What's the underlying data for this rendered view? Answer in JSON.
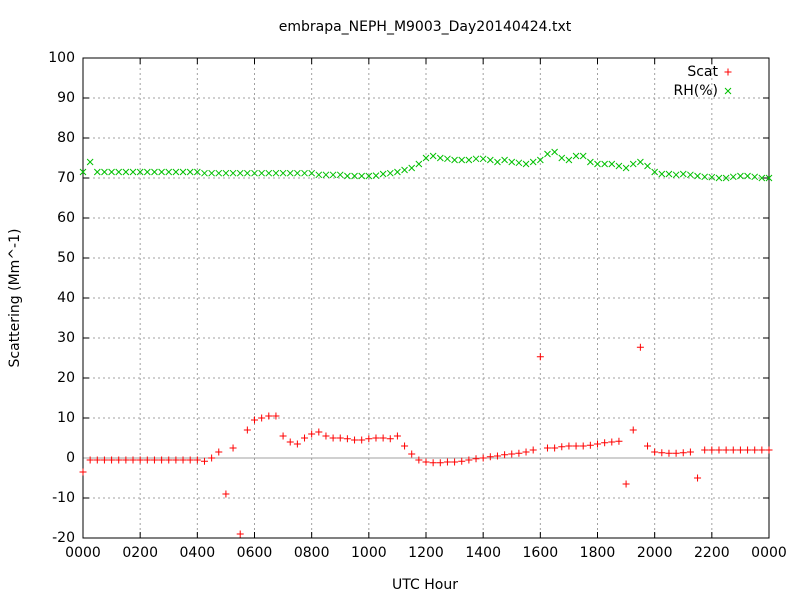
{
  "chart_data": {
    "type": "scatter",
    "title": "embrapa_NEPH_M9003_Day20140424.txt",
    "xlabel": "UTC Hour",
    "ylabel": "Scattering (Mm^-1)",
    "xlim": [
      0,
      24
    ],
    "xticks": [
      {
        "value": 0,
        "label": "0000"
      },
      {
        "value": 2,
        "label": "0200"
      },
      {
        "value": 4,
        "label": "0400"
      },
      {
        "value": 6,
        "label": "0600"
      },
      {
        "value": 8,
        "label": "0800"
      },
      {
        "value": 10,
        "label": "1000"
      },
      {
        "value": 12,
        "label": "1200"
      },
      {
        "value": 14,
        "label": "1400"
      },
      {
        "value": 16,
        "label": "1600"
      },
      {
        "value": 18,
        "label": "1800"
      },
      {
        "value": 20,
        "label": "2000"
      },
      {
        "value": 22,
        "label": "2200"
      },
      {
        "value": 24,
        "label": "0000"
      }
    ],
    "ylim": [
      -20,
      100
    ],
    "yticks": [
      -20,
      -10,
      0,
      10,
      20,
      30,
      40,
      50,
      60,
      70,
      80,
      90,
      100
    ],
    "grid": true,
    "zero_line": true,
    "legend": "top-right",
    "x": [
      0,
      0.25,
      0.5,
      0.75,
      1,
      1.25,
      1.5,
      1.75,
      2,
      2.25,
      2.5,
      2.75,
      3,
      3.25,
      3.5,
      3.75,
      4,
      4.25,
      4.5,
      4.75,
      5,
      5.25,
      5.5,
      5.75,
      6,
      6.25,
      6.5,
      6.75,
      7,
      7.25,
      7.5,
      7.75,
      8,
      8.25,
      8.5,
      8.75,
      9,
      9.25,
      9.5,
      9.75,
      10,
      10.25,
      10.5,
      10.75,
      11,
      11.25,
      11.5,
      11.75,
      12,
      12.25,
      12.5,
      12.75,
      13,
      13.25,
      13.5,
      13.75,
      14,
      14.25,
      14.5,
      14.75,
      15,
      15.25,
      15.5,
      15.75,
      16,
      16.25,
      16.5,
      16.75,
      17,
      17.25,
      17.5,
      17.75,
      18,
      18.25,
      18.5,
      18.75,
      19,
      19.25,
      19.5,
      19.75,
      20,
      20.25,
      20.5,
      20.75,
      21,
      21.25,
      21.5,
      21.75,
      22,
      22.25,
      22.5,
      22.75,
      23,
      23.25,
      23.5,
      23.75,
      24
    ],
    "series": [
      {
        "name": "Scat",
        "color": "#ff0000",
        "marker": "plus",
        "values": [
          -3.5,
          -0.5,
          -0.5,
          -0.5,
          -0.5,
          -0.5,
          -0.5,
          -0.5,
          -0.5,
          -0.5,
          -0.5,
          -0.5,
          -0.5,
          -0.5,
          -0.5,
          -0.5,
          -0.5,
          -0.8,
          0,
          1.5,
          -9,
          2.5,
          -19,
          7,
          9.5,
          10,
          10.5,
          10.5,
          5.5,
          4,
          3.5,
          5,
          6,
          6.5,
          5.5,
          5,
          5,
          4.8,
          4.5,
          4.5,
          4.8,
          5,
          5,
          4.8,
          5.5,
          3,
          1,
          -0.5,
          -1,
          -1.2,
          -1.2,
          -1,
          -1,
          -0.8,
          -0.5,
          -0.2,
          0,
          0.3,
          0.5,
          0.8,
          1,
          1.2,
          1.5,
          2,
          25.3,
          2.5,
          2.5,
          2.8,
          3,
          3,
          3,
          3.2,
          3.5,
          3.8,
          4,
          4.2,
          -6.5,
          7,
          27.7,
          3,
          1.5,
          1.3,
          1.2,
          1.2,
          1.3,
          1.5,
          -5,
          2,
          2,
          2,
          2,
          2,
          2,
          2,
          2,
          2,
          2
        ]
      },
      {
        "name": "RH(%)",
        "color": "#00c000",
        "marker": "cross",
        "values": [
          71.5,
          74,
          71.5,
          71.5,
          71.5,
          71.5,
          71.5,
          71.5,
          71.5,
          71.5,
          71.5,
          71.5,
          71.5,
          71.5,
          71.5,
          71.5,
          71.5,
          71.2,
          71.2,
          71.2,
          71.2,
          71.2,
          71.2,
          71.2,
          71.2,
          71.2,
          71.2,
          71.2,
          71.2,
          71.2,
          71.2,
          71.2,
          71.2,
          70.8,
          70.8,
          70.8,
          70.8,
          70.5,
          70.5,
          70.5,
          70.5,
          70.6,
          71,
          71.2,
          71.5,
          72,
          72.5,
          73.5,
          75,
          75.5,
          75,
          74.8,
          74.5,
          74.5,
          74.5,
          74.8,
          74.8,
          74.5,
          74,
          74.5,
          74,
          73.8,
          73.5,
          74,
          74.5,
          76,
          76.5,
          75,
          74.5,
          75.5,
          75.5,
          74,
          73.5,
          73.5,
          73.5,
          73,
          72.5,
          73.5,
          74,
          73,
          71.5,
          71,
          71,
          70.8,
          71,
          70.8,
          70.5,
          70.3,
          70.2,
          70,
          70,
          70.3,
          70.5,
          70.5,
          70.3,
          70,
          70
        ]
      }
    ]
  }
}
